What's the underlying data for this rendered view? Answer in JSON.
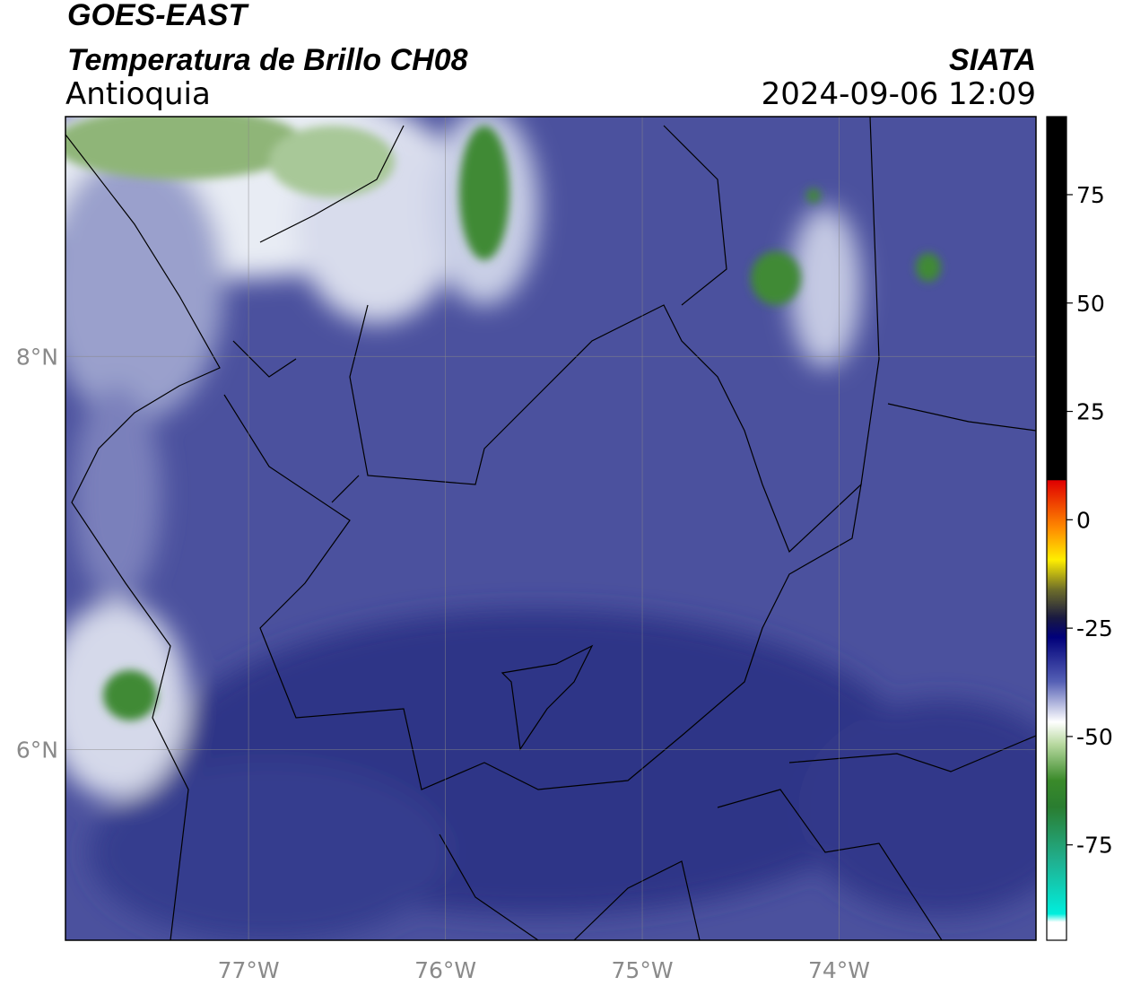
{
  "header": {
    "title": "GOES-EAST",
    "subtitle": "Temperatura de Brillo CH08",
    "region": "Antioquia",
    "source": "SIATA",
    "timestamp": "2024-09-06 12:09"
  },
  "map": {
    "lonlim": [
      -77.93,
      -73.0
    ],
    "latlim": [
      5.03,
      9.22
    ],
    "lon_ticks": [
      {
        "value": -77,
        "label": "77°W"
      },
      {
        "value": -76,
        "label": "76°W"
      },
      {
        "value": -75,
        "label": "75°W"
      },
      {
        "value": -74,
        "label": "74°W"
      }
    ],
    "lat_ticks": [
      {
        "value": 8,
        "label": "8°N"
      },
      {
        "value": 6,
        "label": "6°N"
      }
    ]
  },
  "colorbar": {
    "lim": [
      -97,
      93
    ],
    "ticks": [
      75,
      50,
      25,
      0,
      -25,
      -50,
      -75
    ]
  }
}
